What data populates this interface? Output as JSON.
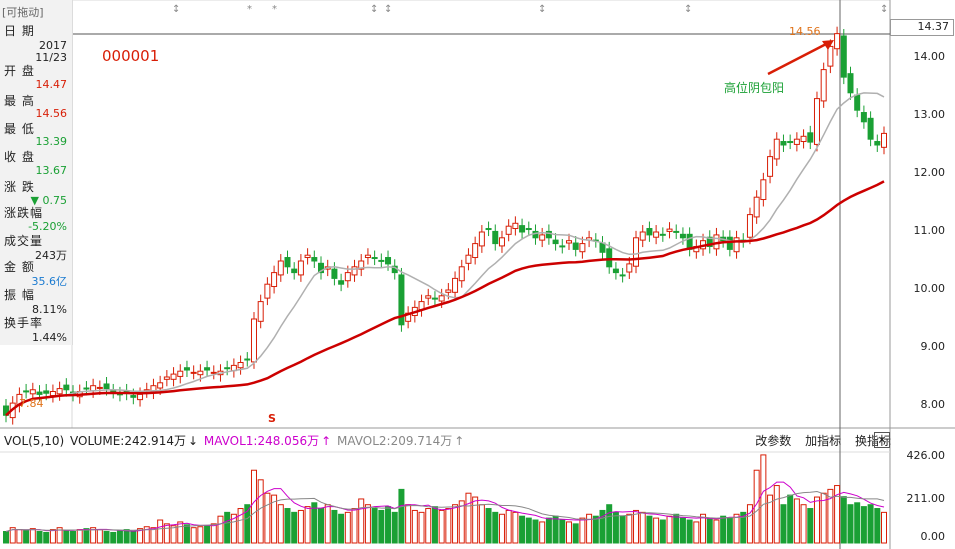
{
  "sidebar": {
    "drag_label": "[可拖动]",
    "fields": [
      {
        "label": "日 期",
        "value": "2017\n11/23",
        "color": "#222222"
      },
      {
        "label": "开 盘",
        "value": "14.47",
        "color": "#d81e06"
      },
      {
        "label": "最 高",
        "value": "14.56",
        "color": "#d81e06"
      },
      {
        "label": "最 低",
        "value": "13.39",
        "color": "#1aa034"
      },
      {
        "label": "收 盘",
        "value": "13.67",
        "color": "#1aa034"
      },
      {
        "label": "涨 跌",
        "value": "▼ 0.75",
        "color": "#1aa034"
      },
      {
        "label": "涨跌幅",
        "value": "-5.20%",
        "color": "#1aa034"
      },
      {
        "label": "成交量",
        "value": "243万",
        "color": "#222222"
      },
      {
        "label": "金 额",
        "value": "35.6亿",
        "color": "#1a7ad0"
      },
      {
        "label": "振 幅",
        "value": "8.11%",
        "color": "#222222"
      },
      {
        "label": "换手率",
        "value": "1.44%",
        "color": "#222222"
      }
    ]
  },
  "main": {
    "stock_code": "000001",
    "annotation": "高位阴包阳",
    "high_label": "14.56",
    "low_label": "7.84",
    "current_price": "14.37",
    "s_mark": "S"
  },
  "price_axis": {
    "ticks": [
      "14.00",
      "13.00",
      "12.00",
      "11.00",
      "10.00",
      "9.00",
      "8.00"
    ]
  },
  "volume_panel": {
    "indicator": "VOL(5,10)",
    "volume": "VOLUME:242.914万",
    "volume_arrow": "↓",
    "ma1": "MAVOL1:248.056万",
    "ma1_arrow": "↑",
    "ma2": "MAVOL2:209.714万",
    "ma2_arrow": "↑",
    "buttons": [
      "改参数",
      "加指标",
      "换指标"
    ],
    "close": "×",
    "ticks": [
      "426.00",
      "211.00",
      "0.00"
    ]
  },
  "colors": {
    "up": "#d81e06",
    "down": "#1aa034",
    "ma_long": "#cc0000",
    "ma_short": "#b0b0b0",
    "mavol1": "#cc00cc",
    "mavol2": "#888888"
  },
  "chart_data": {
    "type": "candlestick",
    "price_range": [
      7.8,
      14.6
    ],
    "volume_range": [
      0,
      470
    ],
    "closes": [
      7.84,
      8.05,
      8.2,
      8.25,
      8.28,
      8.2,
      8.22,
      8.25,
      8.3,
      8.28,
      8.2,
      8.25,
      8.3,
      8.35,
      8.32,
      8.3,
      8.25,
      8.2,
      8.22,
      8.15,
      8.2,
      8.28,
      8.35,
      8.4,
      8.5,
      8.55,
      8.6,
      8.62,
      8.58,
      8.6,
      8.62,
      8.58,
      8.6,
      8.65,
      8.7,
      8.75,
      8.8,
      9.5,
      9.8,
      10.1,
      10.3,
      10.5,
      10.4,
      10.3,
      10.5,
      10.6,
      10.5,
      10.3,
      10.4,
      10.2,
      10.1,
      10.3,
      10.4,
      10.5,
      10.6,
      10.55,
      10.5,
      10.45,
      10.3,
      9.4,
      9.6,
      9.7,
      9.8,
      9.9,
      9.85,
      9.9,
      10.0,
      10.2,
      10.4,
      10.6,
      10.8,
      11.0,
      11.05,
      10.8,
      10.9,
      11.1,
      11.15,
      11.0,
      11.05,
      10.9,
      10.95,
      10.9,
      10.8,
      10.75,
      10.85,
      10.7,
      10.8,
      10.9,
      10.85,
      10.65,
      10.4,
      10.3,
      10.25,
      10.45,
      10.9,
      11.0,
      10.95,
      11.0,
      10.95,
      11.05,
      11.0,
      10.9,
      10.7,
      10.75,
      10.85,
      10.75,
      10.95,
      10.85,
      10.7,
      10.9,
      10.85,
      11.3,
      11.6,
      11.9,
      12.3,
      12.6,
      12.5,
      12.55,
      12.6,
      12.65,
      12.55,
      13.3,
      13.8,
      14.2,
      14.42,
      13.67,
      13.4,
      13.1,
      12.9,
      12.6,
      12.5,
      12.7
    ],
    "volumes": [
      60,
      80,
      70,
      65,
      75,
      60,
      55,
      70,
      80,
      65,
      60,
      70,
      75,
      80,
      70,
      60,
      55,
      65,
      70,
      60,
      75,
      85,
      80,
      120,
      100,
      90,
      110,
      95,
      80,
      85,
      90,
      100,
      140,
      160,
      150,
      180,
      200,
      380,
      330,
      260,
      250,
      200,
      180,
      160,
      170,
      190,
      210,
      180,
      200,
      170,
      150,
      160,
      180,
      230,
      200,
      180,
      170,
      190,
      160,
      280,
      200,
      170,
      160,
      180,
      190,
      170,
      180,
      200,
      220,
      260,
      240,
      200,
      180,
      160,
      150,
      170,
      160,
      140,
      130,
      120,
      110,
      130,
      140,
      120,
      110,
      100,
      130,
      150,
      140,
      170,
      200,
      160,
      140,
      150,
      170,
      160,
      140,
      130,
      120,
      140,
      150,
      130,
      120,
      110,
      150,
      130,
      120,
      140,
      130,
      150,
      160,
      200,
      380,
      460,
      250,
      300,
      200,
      250,
      230,
      200,
      180,
      240,
      260,
      280,
      300,
      242,
      200,
      210,
      190,
      200,
      180,
      160
    ]
  }
}
